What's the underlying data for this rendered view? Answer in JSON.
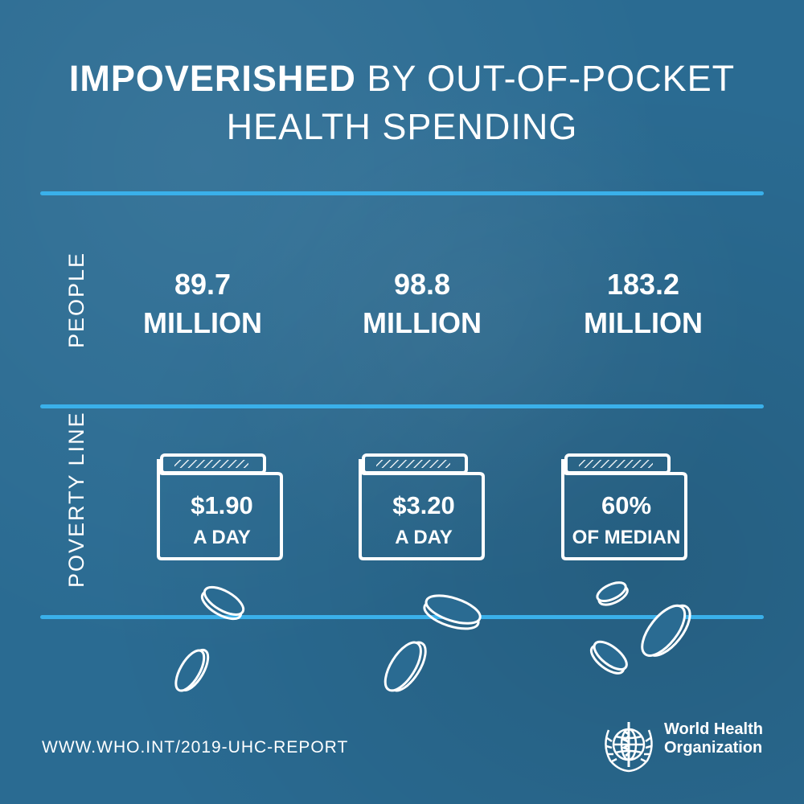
{
  "title": {
    "line1_bold": "IMPOVERISHED",
    "line1_rest": "BY OUT-OF-POCKET",
    "line2": "HEALTH SPENDING"
  },
  "labels": {
    "people": "PEOPLE",
    "poverty_line": "POVERTY LINE"
  },
  "people": [
    {
      "number": "89.7",
      "unit": "MILLION"
    },
    {
      "number": "98.8",
      "unit": "MILLION"
    },
    {
      "number": "183.2",
      "unit": "MILLION"
    }
  ],
  "poverty_lines": [
    {
      "line1": "$1.90",
      "line2": "A DAY"
    },
    {
      "line1": "$3.20",
      "line2": "A DAY"
    },
    {
      "line1": "60%",
      "line2": "OF MEDIAN"
    }
  ],
  "footer": {
    "url": "WWW.WHO.INT/2019-UHC-REPORT",
    "org_line1": "World Health",
    "org_line2": "Organization"
  },
  "colors": {
    "background": "#2a6b92",
    "divider": "#3ab0ea",
    "text": "#ffffff"
  },
  "icons": [
    "wallet-icon",
    "coin-icon",
    "who-emblem-icon"
  ]
}
